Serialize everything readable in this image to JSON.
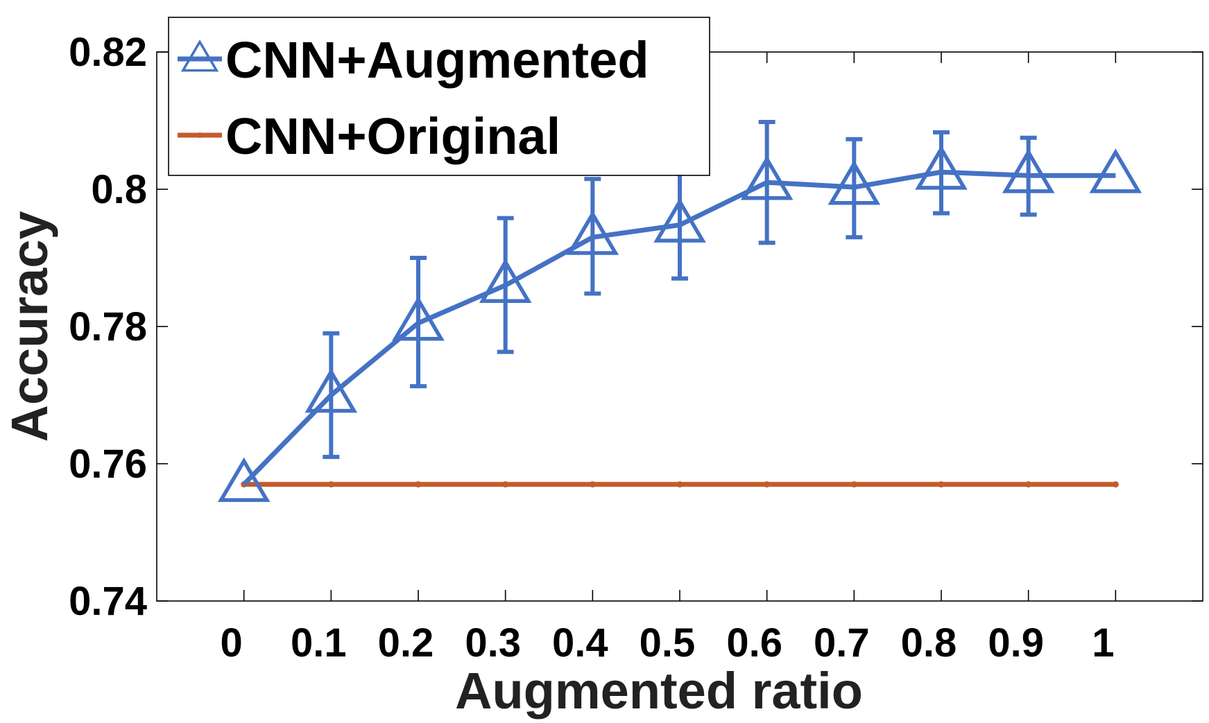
{
  "chart_data": {
    "type": "line",
    "title": "",
    "xlabel": "Augmented ratio",
    "ylabel": "Accuracy",
    "xlim": [
      -0.1,
      1.1
    ],
    "ylim": [
      0.74,
      0.82
    ],
    "x_ticks": [
      0,
      0.1,
      0.2,
      0.3,
      0.4,
      0.5,
      0.6,
      0.7,
      0.8,
      0.9,
      1
    ],
    "x_tick_labels": [
      "0",
      "0.1",
      "0.2",
      "0.3",
      "0.4",
      "0.5",
      "0.6",
      "0.7",
      "0.8",
      "0.9",
      "1"
    ],
    "y_ticks": [
      0.74,
      0.76,
      0.78,
      0.8,
      0.82
    ],
    "y_tick_labels": [
      "0.74",
      "0.76",
      "0.78",
      "0.8",
      "0.82"
    ],
    "grid": false,
    "legend_position": "top-left",
    "series": [
      {
        "name": "CNN+Augmented",
        "color": "#4472c4",
        "marker": "triangle",
        "x": [
          0,
          0.1,
          0.2,
          0.3,
          0.4,
          0.5,
          0.6,
          0.7,
          0.8,
          0.9,
          1
        ],
        "y": [
          0.757,
          0.77,
          0.7805,
          0.786,
          0.793,
          0.7948,
          0.801,
          0.8003,
          0.8025,
          0.802,
          0.802
        ],
        "error_low": [
          null,
          0.761,
          0.7713,
          0.7763,
          0.7848,
          0.787,
          0.7922,
          0.793,
          0.7965,
          0.7963,
          null
        ],
        "error_high": [
          null,
          0.779,
          0.79,
          0.7958,
          0.8015,
          0.8025,
          0.8098,
          0.8073,
          0.8083,
          0.8075,
          null
        ]
      },
      {
        "name": "CNN+Original",
        "color": "#c55a2b",
        "marker": "dot",
        "x": [
          0,
          0.1,
          0.2,
          0.3,
          0.4,
          0.5,
          0.6,
          0.7,
          0.8,
          0.9,
          1
        ],
        "y": [
          0.757,
          0.757,
          0.757,
          0.757,
          0.757,
          0.757,
          0.757,
          0.757,
          0.757,
          0.757,
          0.757
        ]
      }
    ]
  }
}
